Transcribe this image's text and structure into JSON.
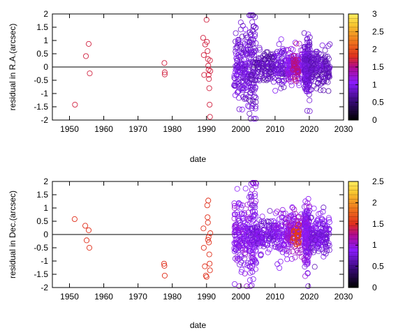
{
  "chart_data": [
    {
      "type": "scatter",
      "xlabel": "date",
      "ylabel": "residual in R.A.(arcsec)",
      "xlim": [
        1945,
        2030
      ],
      "ylim": [
        -2,
        2
      ],
      "xticks": [
        1950,
        1960,
        1970,
        1980,
        1990,
        2000,
        2010,
        2020,
        2030
      ],
      "yticks": [
        -2,
        -1.5,
        -1,
        -0.5,
        0,
        0.5,
        1,
        1.5,
        2
      ],
      "colorbar": {
        "range": [
          0,
          3
        ],
        "ticks": [
          0,
          0.5,
          1,
          1.5,
          2,
          2.5,
          3
        ]
      },
      "zero_line": true,
      "series": [
        {
          "values": [
            {
              "x": 1951.6,
              "y": -1.42,
              "c": 1.7
            },
            {
              "x": 1954.8,
              "y": 0.41,
              "c": 1.7
            },
            {
              "x": 1955.6,
              "y": 0.87,
              "c": 1.7
            },
            {
              "x": 1955.9,
              "y": -0.24,
              "c": 1.7
            },
            {
              "x": 1977.7,
              "y": 0.15,
              "c": 1.7
            },
            {
              "x": 1977.8,
              "y": -0.2,
              "c": 1.7
            },
            {
              "x": 1977.8,
              "y": -0.28,
              "c": 1.7
            },
            {
              "x": 1989.0,
              "y": 1.1,
              "c": 1.7
            },
            {
              "x": 1989.2,
              "y": 0.45,
              "c": 1.7
            },
            {
              "x": 1989.6,
              "y": 0.85,
              "c": 1.7
            },
            {
              "x": 1990.0,
              "y": 1.78,
              "c": 1.7
            },
            {
              "x": 1990.1,
              "y": 0.95,
              "c": 1.7
            },
            {
              "x": 1990.3,
              "y": 0.6,
              "c": 1.7
            },
            {
              "x": 1990.4,
              "y": 0.3,
              "c": 1.7
            },
            {
              "x": 1990.5,
              "y": 0.05,
              "c": 1.7
            },
            {
              "x": 1990.6,
              "y": -0.1,
              "c": 1.7
            },
            {
              "x": 1990.6,
              "y": -0.3,
              "c": 1.7
            },
            {
              "x": 1990.7,
              "y": -0.45,
              "c": 1.7
            },
            {
              "x": 1990.8,
              "y": -0.8,
              "c": 1.7
            },
            {
              "x": 1990.9,
              "y": -1.42,
              "c": 1.7
            },
            {
              "x": 1991.0,
              "y": -1.88,
              "c": 1.7
            },
            {
              "x": 1991.0,
              "y": 0.25,
              "c": 1.7
            },
            {
              "x": 1989.3,
              "y": -0.3,
              "c": 1.7
            },
            {
              "x": 1991.1,
              "y": -0.15,
              "c": 1.7
            }
          ]
        }
      ],
      "dense_clusters": [
        {
          "x_from": 1998,
          "x_to": 2002.5,
          "y_spread": 1.1,
          "count": 160,
          "color": 0.9
        },
        {
          "x_from": 2002.5,
          "x_to": 2004.5,
          "y_spread": 1.7,
          "count": 110,
          "color": 0.85
        },
        {
          "x_from": 2004.5,
          "x_to": 2010,
          "y_spread": 0.45,
          "count": 120,
          "color": 0.8
        },
        {
          "x_from": 2010,
          "x_to": 2013.5,
          "y_spread": 0.7,
          "count": 80,
          "color": 0.9
        },
        {
          "x_from": 2013.5,
          "x_to": 2018,
          "y_spread": 0.55,
          "count": 140,
          "color": 1.1
        },
        {
          "x_from": 2018.5,
          "x_to": 2020.2,
          "y_spread": 1.0,
          "count": 170,
          "color": 0.9
        },
        {
          "x_from": 2020.2,
          "x_to": 2026,
          "y_spread": 0.6,
          "count": 160,
          "color": 0.8
        }
      ]
    },
    {
      "type": "scatter",
      "xlabel": "date",
      "ylabel": "residual in Dec.(arcsec)",
      "xlim": [
        1945,
        2030
      ],
      "ylim": [
        -2,
        2
      ],
      "xticks": [
        1950,
        1960,
        1970,
        1980,
        1990,
        2000,
        2010,
        2020,
        2030
      ],
      "yticks": [
        -2,
        -1.5,
        -1,
        -0.5,
        0,
        0.5,
        1,
        1.5,
        2
      ],
      "colorbar": {
        "range": [
          0,
          2.5
        ],
        "ticks": [
          0,
          0.5,
          1,
          1.5,
          2,
          2.5
        ]
      },
      "zero_line": true,
      "series": [
        {
          "values": [
            {
              "x": 1951.5,
              "y": 0.58,
              "c": 1.5
            },
            {
              "x": 1954.6,
              "y": 0.33,
              "c": 1.5
            },
            {
              "x": 1955.0,
              "y": -0.22,
              "c": 1.5
            },
            {
              "x": 1955.6,
              "y": 0.16,
              "c": 1.5
            },
            {
              "x": 1955.8,
              "y": -0.5,
              "c": 1.5
            },
            {
              "x": 1977.6,
              "y": -1.1,
              "c": 1.5
            },
            {
              "x": 1977.7,
              "y": -1.18,
              "c": 1.5
            },
            {
              "x": 1977.8,
              "y": -1.55,
              "c": 1.5
            },
            {
              "x": 1989.1,
              "y": 0.23,
              "c": 1.5
            },
            {
              "x": 1989.2,
              "y": -0.5,
              "c": 1.5
            },
            {
              "x": 1989.5,
              "y": -1.2,
              "c": 1.5
            },
            {
              "x": 1989.8,
              "y": -1.55,
              "c": 1.5
            },
            {
              "x": 1990.0,
              "y": -1.6,
              "c": 1.5
            },
            {
              "x": 1990.2,
              "y": 1.1,
              "c": 1.5
            },
            {
              "x": 1990.3,
              "y": 0.65,
              "c": 1.5
            },
            {
              "x": 1990.4,
              "y": 0.45,
              "c": 1.5
            },
            {
              "x": 1990.5,
              "y": 1.28,
              "c": 1.5
            },
            {
              "x": 1990.6,
              "y": -0.1,
              "c": 1.5
            },
            {
              "x": 1990.7,
              "y": -0.3,
              "c": 1.5
            },
            {
              "x": 1990.8,
              "y": -0.75,
              "c": 1.5
            },
            {
              "x": 1990.9,
              "y": -1.1,
              "c": 1.5
            },
            {
              "x": 1991.0,
              "y": -1.35,
              "c": 1.5
            },
            {
              "x": 1991.1,
              "y": 0.05,
              "c": 1.5
            },
            {
              "x": 1990.4,
              "y": -0.2,
              "c": 1.5
            }
          ]
        }
      ],
      "dense_clusters": [
        {
          "x_from": 1998,
          "x_to": 2002.5,
          "y_spread": 1.1,
          "count": 160,
          "color": 0.9
        },
        {
          "x_from": 2002.5,
          "x_to": 2004.5,
          "y_spread": 1.6,
          "count": 110,
          "color": 0.85
        },
        {
          "x_from": 2004.5,
          "x_to": 2010,
          "y_spread": 0.5,
          "count": 130,
          "color": 0.8
        },
        {
          "x_from": 2010,
          "x_to": 2013.5,
          "y_spread": 0.7,
          "count": 80,
          "color": 0.9
        },
        {
          "x_from": 2013.5,
          "x_to": 2018,
          "y_spread": 0.6,
          "count": 140,
          "color": 1.0
        },
        {
          "x_from": 2018.5,
          "x_to": 2020.2,
          "y_spread": 1.0,
          "count": 170,
          "color": 0.9
        },
        {
          "x_from": 2020.2,
          "x_to": 2026,
          "y_spread": 0.6,
          "count": 160,
          "color": 0.8
        }
      ]
    }
  ]
}
